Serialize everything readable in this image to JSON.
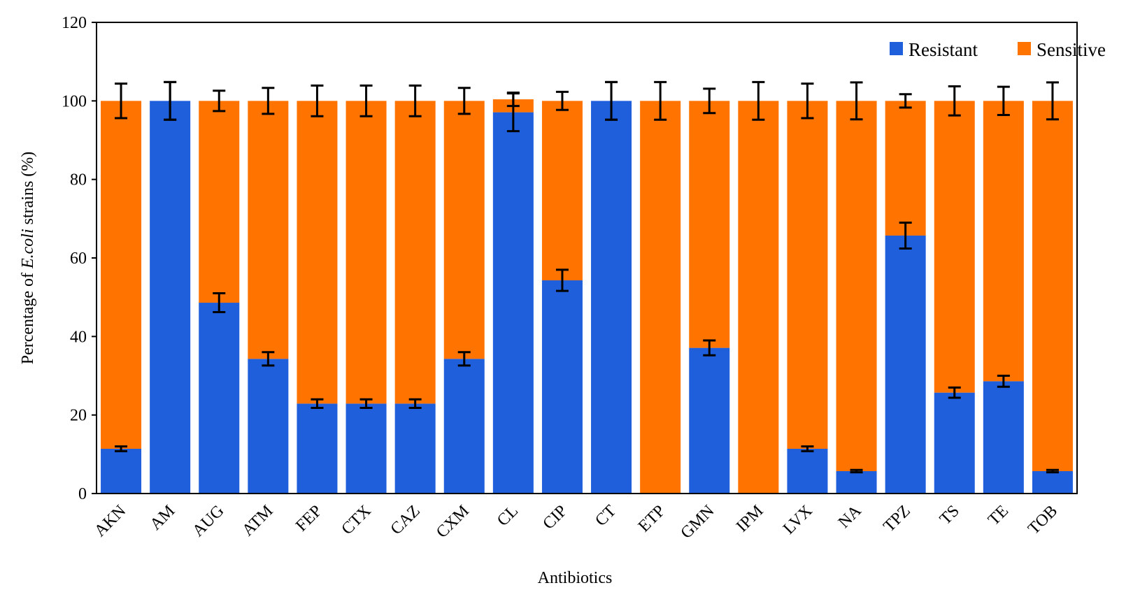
{
  "chart_data": {
    "type": "bar",
    "stacked": true,
    "title": "",
    "xlabel": "Antibiotics",
    "ylabel": {
      "prefix": "Percentage of ",
      "italic": "E.coli",
      "suffix": " strains (%)"
    },
    "ylim": [
      0,
      120
    ],
    "yticks": [
      0,
      20,
      40,
      60,
      80,
      100,
      120
    ],
    "grid": false,
    "legend_position": "top-right",
    "colors": {
      "Resistant": "#1f5fdb",
      "Sensitive": "#ff7300",
      "error_bar": "#000000"
    },
    "categories": [
      "AKN",
      "AM",
      "AUG",
      "ATM",
      "FEP",
      "CTX",
      "CAZ",
      "CXM",
      "CL",
      "CIP",
      "CT",
      "ETP",
      "GMN",
      "IPM",
      "LVX",
      "NA",
      "TPZ",
      "TS",
      "TE",
      "TOB"
    ],
    "series": [
      {
        "name": "Resistant",
        "values": [
          11.4,
          100,
          48.6,
          34.3,
          22.9,
          22.9,
          22.9,
          34.3,
          97.1,
          54.3,
          100,
          0,
          37.1,
          0,
          11.4,
          5.7,
          65.7,
          25.7,
          28.6,
          5.7
        ]
      },
      {
        "name": "Sensitive",
        "values": [
          88.6,
          0,
          51.4,
          65.7,
          77.1,
          77.1,
          77.1,
          65.7,
          3.3,
          45.7,
          0,
          100,
          62.9,
          100,
          88.6,
          94.3,
          34.3,
          74.3,
          71.4,
          94.3
        ]
      }
    ],
    "error_bars": {
      "resistant_err": [
        0.6,
        4.8,
        2.4,
        1.7,
        1.1,
        1.1,
        1.1,
        1.7,
        4.8,
        2.7,
        4.8,
        null,
        1.9,
        null,
        0.6,
        0.3,
        3.3,
        1.3,
        1.4,
        0.3
      ],
      "total_err": [
        4.4,
        4.8,
        2.6,
        3.3,
        3.9,
        3.9,
        3.9,
        3.3,
        1.7,
        2.3,
        4.8,
        4.8,
        3.1,
        4.8,
        4.4,
        4.7,
        1.7,
        3.7,
        3.6,
        4.7
      ]
    }
  }
}
